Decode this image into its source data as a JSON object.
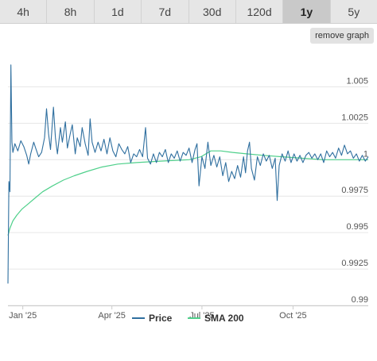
{
  "range_tabs": [
    {
      "label": "4h"
    },
    {
      "label": "8h"
    },
    {
      "label": "1d"
    },
    {
      "label": "7d"
    },
    {
      "label": "30d"
    },
    {
      "label": "120d"
    },
    {
      "label": "1y"
    },
    {
      "label": "5y"
    }
  ],
  "active_tab": "1y",
  "remove_graph_label": "remove graph",
  "chart_data": {
    "type": "line",
    "x_range": [
      "2024-12-17",
      "2025-12-16"
    ],
    "ylim": [
      0.99,
      1.0066
    ],
    "y_ticks": [
      {
        "value": 0.99,
        "label": "0.99"
      },
      {
        "value": 0.9925,
        "label": "0.9925"
      },
      {
        "value": 0.995,
        "label": "0.995"
      },
      {
        "value": 0.9975,
        "label": "0.9975"
      },
      {
        "value": 1.0,
        "label": "1"
      },
      {
        "value": 1.0025,
        "label": "1.0025"
      },
      {
        "value": 1.005,
        "label": "1.005"
      }
    ],
    "x_ticks": [
      {
        "date": "2025-01-01",
        "label": "Jan '25"
      },
      {
        "date": "2025-04-01",
        "label": "Apr '25"
      },
      {
        "date": "2025-07-01",
        "label": "Jul '25"
      },
      {
        "date": "2025-10-01",
        "label": "Oct '25"
      }
    ],
    "legend_position": "bottom",
    "series": [
      {
        "name": "Price",
        "color": "#2f6f9f",
        "points": [
          [
            "2024-12-17",
            0.9915
          ],
          [
            "2024-12-18",
            0.9985
          ],
          [
            "2024-12-19",
            0.9978
          ],
          [
            "2024-12-20",
            1.0065
          ],
          [
            "2024-12-21",
            1.0012
          ],
          [
            "2024-12-22",
            1.0005
          ],
          [
            "2024-12-24",
            1.0011
          ],
          [
            "2024-12-27",
            1.0006
          ],
          [
            "2024-12-30",
            1.0013
          ],
          [
            "2025-01-02",
            1.0009
          ],
          [
            "2025-01-05",
            1.0003
          ],
          [
            "2025-01-07",
            0.9997
          ],
          [
            "2025-01-09",
            1.0004
          ],
          [
            "2025-01-12",
            1.0012
          ],
          [
            "2025-01-14",
            1.0008
          ],
          [
            "2025-01-17",
            1.0002
          ],
          [
            "2025-01-20",
            1.0005
          ],
          [
            "2025-01-23",
            1.0015
          ],
          [
            "2025-01-25",
            1.0035
          ],
          [
            "2025-01-27",
            1.0018
          ],
          [
            "2025-01-29",
            1.0007
          ],
          [
            "2025-02-01",
            1.0036
          ],
          [
            "2025-02-03",
            1.0015
          ],
          [
            "2025-02-05",
            1.0004
          ],
          [
            "2025-02-08",
            1.0022
          ],
          [
            "2025-02-10",
            1.0012
          ],
          [
            "2025-02-13",
            1.0026
          ],
          [
            "2025-02-15",
            1.0008
          ],
          [
            "2025-02-18",
            1.0018
          ],
          [
            "2025-02-20",
            1.0024
          ],
          [
            "2025-02-23",
            1.0004
          ],
          [
            "2025-02-25",
            1.0015
          ],
          [
            "2025-02-28",
            1.0009
          ],
          [
            "2025-03-02",
            1.0022
          ],
          [
            "2025-03-05",
            1.0011
          ],
          [
            "2025-03-08",
            1.0003
          ],
          [
            "2025-03-10",
            1.0028
          ],
          [
            "2025-03-12",
            1.0012
          ],
          [
            "2025-03-15",
            1.0005
          ],
          [
            "2025-03-18",
            1.0012
          ],
          [
            "2025-03-21",
            1.0006
          ],
          [
            "2025-03-24",
            1.0014
          ],
          [
            "2025-03-27",
            1.0004
          ],
          [
            "2025-03-30",
            1.0015
          ],
          [
            "2025-04-02",
            1.0006
          ],
          [
            "2025-04-05",
            1.0002
          ],
          [
            "2025-04-08",
            1.0011
          ],
          [
            "2025-04-11",
            1.0007
          ],
          [
            "2025-04-14",
            1.0004
          ],
          [
            "2025-04-17",
            1.0009
          ],
          [
            "2025-04-20",
            0.9998
          ],
          [
            "2025-04-23",
            1.0004
          ],
          [
            "2025-04-26",
            1.0002
          ],
          [
            "2025-04-29",
            1.0007
          ],
          [
            "2025-05-02",
            1.0002
          ],
          [
            "2025-05-05",
            1.0022
          ],
          [
            "2025-05-07",
            1.0001
          ],
          [
            "2025-05-10",
            0.9997
          ],
          [
            "2025-05-13",
            1.0004
          ],
          [
            "2025-05-16",
            0.9998
          ],
          [
            "2025-05-19",
            1.0005
          ],
          [
            "2025-05-22",
            1.0002
          ],
          [
            "2025-05-25",
            1.0007
          ],
          [
            "2025-05-28",
            0.9998
          ],
          [
            "2025-05-31",
            1.0004
          ],
          [
            "2025-06-03",
            1.0001
          ],
          [
            "2025-06-06",
            1.0006
          ],
          [
            "2025-06-09",
            0.9999
          ],
          [
            "2025-06-12",
            1.0005
          ],
          [
            "2025-06-15",
            1.0003
          ],
          [
            "2025-06-18",
            1.0008
          ],
          [
            "2025-06-21",
            0.9998
          ],
          [
            "2025-06-24",
            1.0007
          ],
          [
            "2025-06-26",
            1.0011
          ],
          [
            "2025-06-28",
            0.9982
          ],
          [
            "2025-07-01",
            1.0002
          ],
          [
            "2025-07-04",
            0.9994
          ],
          [
            "2025-07-07",
            1.0012
          ],
          [
            "2025-07-10",
            0.9996
          ],
          [
            "2025-07-13",
            1.0003
          ],
          [
            "2025-07-16",
            0.9995
          ],
          [
            "2025-07-19",
            1.0002
          ],
          [
            "2025-07-22",
            0.9989
          ],
          [
            "2025-07-25",
            0.9998
          ],
          [
            "2025-07-28",
            0.9985
          ],
          [
            "2025-07-31",
            0.9992
          ],
          [
            "2025-08-03",
            0.9987
          ],
          [
            "2025-08-06",
            0.9996
          ],
          [
            "2025-08-09",
            0.9988
          ],
          [
            "2025-08-12",
            1.0002
          ],
          [
            "2025-08-14",
            0.9991
          ],
          [
            "2025-08-16",
            1.0006
          ],
          [
            "2025-08-18",
            1.0012
          ],
          [
            "2025-08-20",
            0.9994
          ],
          [
            "2025-08-23",
            0.9986
          ],
          [
            "2025-08-26",
            1.0002
          ],
          [
            "2025-08-29",
            0.9996
          ],
          [
            "2025-09-01",
            1.0004
          ],
          [
            "2025-09-04",
            0.9999
          ],
          [
            "2025-09-07",
            1.0003
          ],
          [
            "2025-09-10",
            0.9994
          ],
          [
            "2025-09-13",
            1.0001
          ],
          [
            "2025-09-15",
            0.9972
          ],
          [
            "2025-09-17",
            0.9996
          ],
          [
            "2025-09-20",
            1.0004
          ],
          [
            "2025-09-23",
            0.9999
          ],
          [
            "2025-09-26",
            1.0006
          ],
          [
            "2025-09-29",
            0.9998
          ],
          [
            "2025-10-02",
            1.0004
          ],
          [
            "2025-10-05",
            0.9999
          ],
          [
            "2025-10-08",
            1.0003
          ],
          [
            "2025-10-11",
            0.9998
          ],
          [
            "2025-10-14",
            1.0003
          ],
          [
            "2025-10-17",
            1.0005
          ],
          [
            "2025-10-20",
            1.0001
          ],
          [
            "2025-10-23",
            1.0004
          ],
          [
            "2025-10-26",
            1.0
          ],
          [
            "2025-10-29",
            1.0004
          ],
          [
            "2025-11-01",
            0.9998
          ],
          [
            "2025-11-04",
            1.0006
          ],
          [
            "2025-11-07",
            1.0002
          ],
          [
            "2025-11-10",
            1.0005
          ],
          [
            "2025-11-13",
            1.0001
          ],
          [
            "2025-11-16",
            1.0008
          ],
          [
            "2025-11-19",
            1.0003
          ],
          [
            "2025-11-22",
            1.001
          ],
          [
            "2025-11-25",
            1.0004
          ],
          [
            "2025-11-28",
            1.0006
          ],
          [
            "2025-12-01",
            1.0001
          ],
          [
            "2025-12-04",
            1.0004
          ],
          [
            "2025-12-07",
            0.9999
          ],
          [
            "2025-12-10",
            1.0003
          ],
          [
            "2025-12-13",
            0.9999
          ],
          [
            "2025-12-16",
            1.0002
          ]
        ]
      },
      {
        "name": "SMA 200",
        "color": "#4fd08b",
        "points": [
          [
            "2024-12-17",
            0.9948
          ],
          [
            "2024-12-19",
            0.9953
          ],
          [
            "2024-12-22",
            0.9958
          ],
          [
            "2024-12-26",
            0.9962
          ],
          [
            "2024-12-31",
            0.9966
          ],
          [
            "2025-01-07",
            0.997
          ],
          [
            "2025-01-14",
            0.9974
          ],
          [
            "2025-01-21",
            0.9978
          ],
          [
            "2025-01-31",
            0.9982
          ],
          [
            "2025-02-11",
            0.9986
          ],
          [
            "2025-02-22",
            0.9989
          ],
          [
            "2025-03-07",
            0.9992
          ],
          [
            "2025-03-22",
            0.9995
          ],
          [
            "2025-04-07",
            0.9997
          ],
          [
            "2025-04-26",
            0.9998
          ],
          [
            "2025-05-20",
            0.9999
          ],
          [
            "2025-06-18",
            1.0
          ],
          [
            "2025-06-30",
            1.0002
          ],
          [
            "2025-07-10",
            1.0006
          ],
          [
            "2025-07-20",
            1.0006
          ],
          [
            "2025-08-01",
            1.0005
          ],
          [
            "2025-08-15",
            1.0004
          ],
          [
            "2025-09-01",
            1.0003
          ],
          [
            "2025-09-20",
            1.0002
          ],
          [
            "2025-10-10",
            1.0001
          ],
          [
            "2025-11-01",
            1.0
          ],
          [
            "2025-12-16",
            1.0
          ]
        ]
      }
    ]
  }
}
